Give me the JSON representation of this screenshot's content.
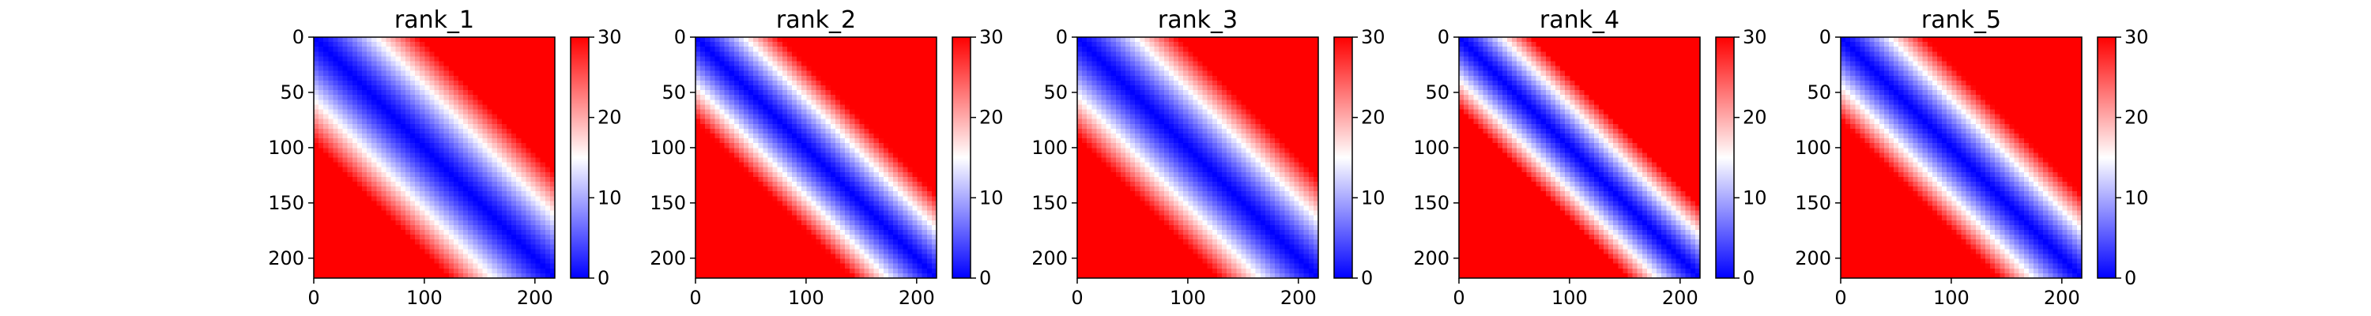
{
  "chart_data": [
    {
      "type": "heatmap",
      "title": "rank_1",
      "x_ticks": [
        0,
        100,
        200
      ],
      "y_ticks": [
        0,
        50,
        100,
        150,
        200
      ],
      "xlim": [
        0,
        218
      ],
      "ylim": [
        218,
        0
      ],
      "colorbar": {
        "ticks": [
          0,
          10,
          20,
          30
        ],
        "range": [
          0,
          30
        ],
        "colormap": "bwr"
      },
      "pattern": {
        "diagonal_value": 0,
        "far_value": 30,
        "band_width": 95
      }
    },
    {
      "type": "heatmap",
      "title": "rank_2",
      "x_ticks": [
        0,
        100,
        200
      ],
      "y_ticks": [
        0,
        50,
        100,
        150,
        200
      ],
      "xlim": [
        0,
        218
      ],
      "ylim": [
        218,
        0
      ],
      "colorbar": {
        "ticks": [
          0,
          10,
          20,
          30
        ],
        "range": [
          0,
          30
        ],
        "colormap": "bwr"
      },
      "pattern": {
        "diagonal_value": 0,
        "far_value": 30,
        "band_width": 75
      }
    },
    {
      "type": "heatmap",
      "title": "rank_3",
      "x_ticks": [
        0,
        100,
        200
      ],
      "y_ticks": [
        0,
        50,
        100,
        150,
        200
      ],
      "xlim": [
        0,
        218
      ],
      "ylim": [
        218,
        0
      ],
      "colorbar": {
        "ticks": [
          0,
          10,
          20,
          30
        ],
        "range": [
          0,
          30
        ],
        "colormap": "bwr"
      },
      "pattern": {
        "diagonal_value": 0,
        "far_value": 30,
        "band_width": 90
      }
    },
    {
      "type": "heatmap",
      "title": "rank_4",
      "x_ticks": [
        0,
        100,
        200
      ],
      "y_ticks": [
        0,
        50,
        100,
        150,
        200
      ],
      "xlim": [
        0,
        218
      ],
      "ylim": [
        218,
        0
      ],
      "colorbar": {
        "ticks": [
          0,
          10,
          20,
          30
        ],
        "range": [
          0,
          30
        ],
        "colormap": "bwr"
      },
      "pattern": {
        "diagonal_value": 0,
        "far_value": 30,
        "band_width": 65
      }
    },
    {
      "type": "heatmap",
      "title": "rank_5",
      "x_ticks": [
        0,
        100,
        200
      ],
      "y_ticks": [
        0,
        50,
        100,
        150,
        200
      ],
      "xlim": [
        0,
        218
      ],
      "ylim": [
        218,
        0
      ],
      "colorbar": {
        "ticks": [
          0,
          10,
          20,
          30
        ],
        "range": [
          0,
          30
        ],
        "colormap": "bwr"
      },
      "pattern": {
        "diagonal_value": 0,
        "far_value": 30,
        "band_width": 75
      }
    }
  ]
}
